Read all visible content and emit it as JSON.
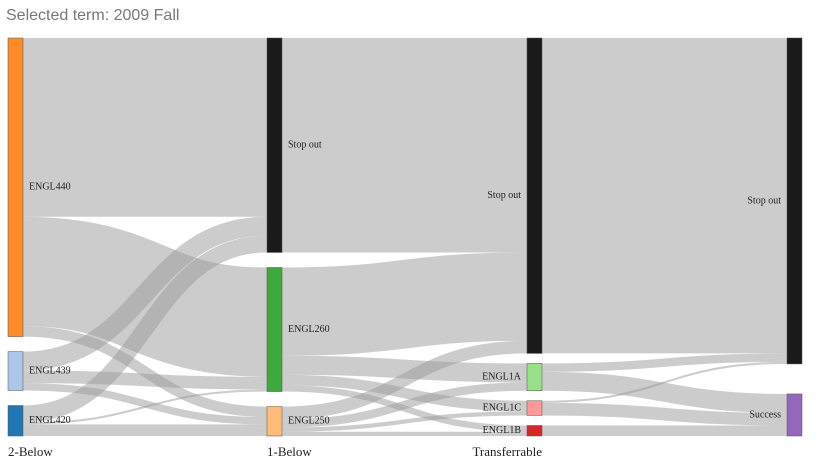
{
  "chart_data": {
    "type": "sankey",
    "title": "Selected term: 2009 Fall",
    "columns": [
      "2-Below",
      "1-Below",
      "Transferrable",
      null
    ],
    "nodes": [
      {
        "name": "ENGL440",
        "column": 0,
        "color": "#ff8c26"
      },
      {
        "name": "ENGL439",
        "column": 0,
        "color": "#aec7e8"
      },
      {
        "name": "ENGL420",
        "column": 0,
        "color": "#1f77b4"
      },
      {
        "name": "Stop out",
        "column": 1,
        "color": "#1a1a1a"
      },
      {
        "name": "ENGL260",
        "column": 1,
        "color": "#3fa83f"
      },
      {
        "name": "ENGL250",
        "column": 1,
        "color": "#ffbb78"
      },
      {
        "name": "Stop out",
        "column": 2,
        "color": "#1a1a1a"
      },
      {
        "name": "ENGL1A",
        "column": 2,
        "color": "#98df8a"
      },
      {
        "name": "ENGL1C",
        "column": 2,
        "color": "#ff9896"
      },
      {
        "name": "ENGL1B",
        "column": 2,
        "color": "#d62728"
      },
      {
        "name": "Stop out",
        "column": 3,
        "color": "#1a1a1a"
      },
      {
        "name": "Success",
        "column": 3,
        "color": "#9467bd"
      }
    ],
    "links": [
      {
        "source": 0,
        "target": 3,
        "value": 170
      },
      {
        "source": 0,
        "target": 4,
        "value": 104
      },
      {
        "source": 0,
        "target": 5,
        "value": 10
      },
      {
        "source": 1,
        "target": 3,
        "value": 18
      },
      {
        "source": 1,
        "target": 4,
        "value": 12
      },
      {
        "source": 1,
        "target": 5,
        "value": 7
      },
      {
        "source": 2,
        "target": 3,
        "value": 16
      },
      {
        "source": 2,
        "target": 4,
        "value": 2
      },
      {
        "source": 2,
        "target": 5,
        "value": 11
      },
      {
        "source": 3,
        "target": 6,
        "value": 204
      },
      {
        "source": 4,
        "target": 6,
        "value": 84
      },
      {
        "source": 4,
        "target": 7,
        "value": 18
      },
      {
        "source": 4,
        "target": 8,
        "value": 10
      },
      {
        "source": 4,
        "target": 9,
        "value": 6
      },
      {
        "source": 5,
        "target": 6,
        "value": 12
      },
      {
        "source": 5,
        "target": 7,
        "value": 8
      },
      {
        "source": 5,
        "target": 8,
        "value": 4
      },
      {
        "source": 5,
        "target": 9,
        "value": 4
      },
      {
        "source": 6,
        "target": 10,
        "value": 300
      },
      {
        "source": 7,
        "target": 10,
        "value": 8
      },
      {
        "source": 7,
        "target": 11,
        "value": 18
      },
      {
        "source": 8,
        "target": 10,
        "value": 2
      },
      {
        "source": 8,
        "target": 11,
        "value": 12
      },
      {
        "source": 9,
        "target": 11,
        "value": 10
      }
    ]
  }
}
